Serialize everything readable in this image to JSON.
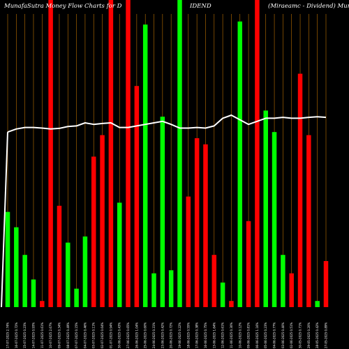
{
  "chart_data": {
    "type": "bar",
    "title_left": "MunafaSutra  Money Flow  Charts for D",
    "title_mid": "IDEND",
    "title_right": "(Miraeamc -  Dividend) MunafaS",
    "ylim": [
      0,
      100
    ],
    "grid": "vertical",
    "colors": {
      "background": "#000000",
      "up": "#00ff00",
      "down": "#ff0000",
      "grid": "#ff9900",
      "line": "#ffffff",
      "text": "#ffffff"
    },
    "categories": [
      "17-07-2025 2.74%",
      "16-07-2025 0.72%",
      "15-07-2025 0.23%",
      "14-07-2025 0.93%",
      "11-07-2025 0.61%",
      "10-07-2025 2.67%",
      "09-07-2025 0.34%",
      "08-07-2025 0.49%",
      "07-07-2025 0.15%",
      "04-07-2025 0.46%",
      "03-07-2025 0.11%",
      "02-07-2025 0.64%",
      "01-07-2025 0.94%",
      "30-06-2025 0.43%",
      "27-06-2025 0.65%",
      "26-06-2025 1.04%",
      "25-06-2025 0.60%",
      "24-06-2025 0.31%",
      "23-06-2025 0.42%",
      "20-06-2025 0.72%",
      "19-06-2025 0.22%",
      "18-06-2025 0.55%",
      "17-06-2025 0.38%",
      "16-06-2025 0.75%",
      "13-06-2025 1.64%",
      "12-06-2025 0.61%",
      "11-06-2025 0.30%",
      "10-06-2025 0.12%",
      "09-06-2025 0.81%",
      "06-06-2025 1.16%",
      "05-06-2025 0.23%",
      "04-06-2025 0.77%",
      "03-06-2025 0.40%",
      "02-06-2025 0.51%",
      "30-05-2025 0.71%",
      "29-05-2025 0.20%",
      "28-05-2025 0.42%",
      "27-05-2025 0.89%"
    ],
    "series": [
      {
        "values": [
          31,
          26,
          17,
          9,
          2,
          100,
          33,
          21,
          6,
          23,
          49,
          56,
          100,
          34,
          100,
          72,
          92,
          11,
          62,
          12,
          100,
          36,
          55,
          53,
          17,
          8,
          2,
          93,
          28,
          100,
          64,
          57,
          17,
          11,
          76,
          56,
          2,
          15
        ],
        "direction": [
          "up",
          "up",
          "up",
          "up",
          "down",
          "down",
          "down",
          "up",
          "up",
          "up",
          "down",
          "down",
          "down",
          "up",
          "down",
          "down",
          "up",
          "up",
          "up",
          "up",
          "up",
          "down",
          "down",
          "down",
          "down",
          "up",
          "down",
          "up",
          "down",
          "down",
          "up",
          "up",
          "up",
          "down",
          "down",
          "down",
          "up",
          "down"
        ]
      },
      {
        "type": "line",
        "values": [
          57,
          58,
          58.5,
          58.5,
          58.3,
          58,
          58.2,
          58.8,
          59,
          60,
          59.5,
          59.8,
          60,
          58.5,
          58.5,
          59,
          59.5,
          60,
          60.5,
          59.5,
          58.3,
          58.3,
          58.5,
          58.3,
          59,
          61.5,
          62.5,
          61,
          59.5,
          60.5,
          61.5,
          61.5,
          61.8,
          61.5,
          61.5,
          61.8,
          62,
          61.8
        ]
      }
    ]
  }
}
